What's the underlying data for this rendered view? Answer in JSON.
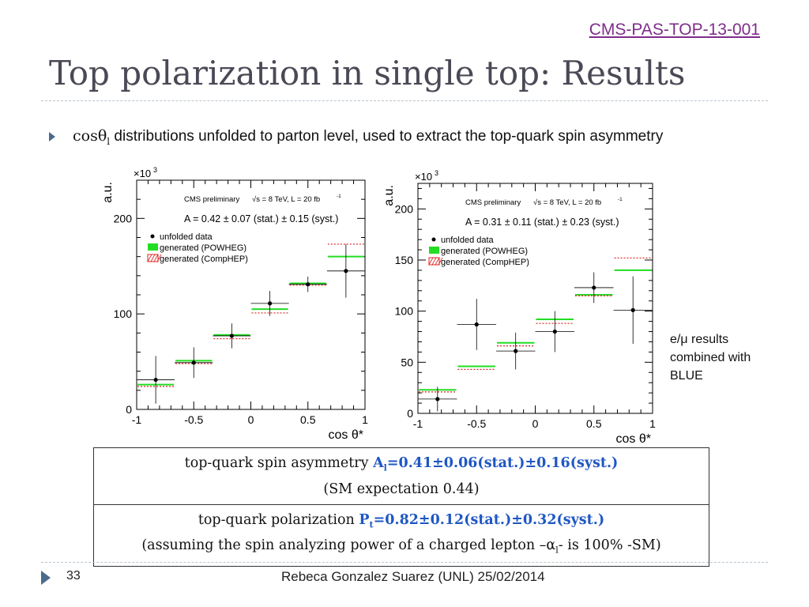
{
  "header": {
    "ref_link": "CMS-PAS-TOP-13-001",
    "title": "Top polarization in single top: Results"
  },
  "bullet": {
    "symbol": "cosθ",
    "subscript": "l",
    "text": " distributions unfolded to parton level, used to extract the top-quark spin asymmetry"
  },
  "side_note": "e/μ results combined with BLUE",
  "results": {
    "row1": {
      "label": "top-quark spin asymmetry ",
      "var": "A",
      "sub": "l",
      "value": "=0.41±0.06(stat.)±0.16(syst.)",
      "note": "(SM expectation 0.44)"
    },
    "row2": {
      "label": "top-quark polarization ",
      "var": "P",
      "sub": "t",
      "value": "=0.82±0.12(stat.)±0.32(syst.)",
      "note_pre": "(assuming the spin analyzing power of a charged lepton –α",
      "note_sub": "l",
      "note_post": "- is 100% -SM)"
    }
  },
  "footer": {
    "page": "33",
    "text": "Rebeca Gonzalez Suarez (UNL) 25/02/2014"
  },
  "colors": {
    "accent_link": "#7e2d8a",
    "highlight": "#1f57c4",
    "powheg": "#22dd22",
    "comphep": "#e02020"
  },
  "chart_data": [
    {
      "type": "scatter",
      "header": "CMS preliminary",
      "energy_label": "√s = 8 TeV, L = 20 fb",
      "lumi_exp": "-1",
      "result": "A = 0.42 ± 0.07 (stat.) ± 0.15 (syst.)",
      "ylabel": "a.u.",
      "y_multiplier": "×10",
      "y_multiplier_exp": "3",
      "xlabel": "cos θ*",
      "xlim": [
        -1,
        1
      ],
      "ylim": [
        0,
        240
      ],
      "xticks": [
        "-1",
        "-0.5",
        "0",
        "0.5",
        "1"
      ],
      "yticks": [
        "0",
        "100",
        "200"
      ],
      "ytick_values": [
        0,
        100,
        200
      ],
      "legend": [
        "unfolded data",
        "generated (POWHEG)",
        "generated (CompHEP)"
      ],
      "bins": [
        [
          -1,
          -0.667
        ],
        [
          -0.667,
          -0.333
        ],
        [
          -0.333,
          0
        ],
        [
          0,
          0.333
        ],
        [
          0.333,
          0.667
        ],
        [
          0.667,
          1
        ]
      ],
      "x": [
        -0.833,
        -0.5,
        -0.167,
        0.167,
        0.5,
        0.833
      ],
      "series": [
        {
          "name": "unfolded data",
          "values": [
            31,
            49,
            77,
            111,
            131,
            145
          ],
          "errors": [
            25,
            16,
            13,
            13,
            8,
            28
          ]
        },
        {
          "name": "generated (POWHEG)",
          "values": [
            26,
            51,
            78,
            105,
            132,
            160
          ]
        },
        {
          "name": "generated (CompHEP)",
          "values": [
            24,
            48,
            74,
            101,
            130,
            173
          ]
        }
      ]
    },
    {
      "type": "scatter",
      "header": "CMS preliminary",
      "energy_label": "√s = 8 TeV, L = 20 fb",
      "lumi_exp": "-1",
      "result": "A = 0.31 ± 0.11 (stat.) ± 0.23 (syst.)",
      "ylabel": "a.u.",
      "y_multiplier": "×10",
      "y_multiplier_exp": "3",
      "xlabel": "cos θ*",
      "xlim": [
        -1,
        1
      ],
      "ylim": [
        0,
        225
      ],
      "xticks": [
        "-1",
        "-0.5",
        "0",
        "0.5",
        "1"
      ],
      "yticks": [
        "0",
        "50",
        "100",
        "150",
        "200"
      ],
      "ytick_values": [
        0,
        50,
        100,
        150,
        200
      ],
      "legend": [
        "unfolded data",
        "generated (POWHEG)",
        "generated (CompHEP)"
      ],
      "bins": [
        [
          -1,
          -0.667
        ],
        [
          -0.667,
          -0.333
        ],
        [
          -0.333,
          0
        ],
        [
          0,
          0.333
        ],
        [
          0.333,
          0.667
        ],
        [
          0.667,
          1
        ]
      ],
      "x": [
        -0.833,
        -0.5,
        -0.167,
        0.167,
        0.5,
        0.833
      ],
      "series": [
        {
          "name": "unfolded data",
          "values": [
            14,
            87,
            61,
            80,
            123,
            101
          ],
          "errors": [
            12,
            25,
            18,
            20,
            15,
            33
          ]
        },
        {
          "name": "generated (POWHEG)",
          "values": [
            23,
            46,
            69,
            92,
            116,
            140
          ]
        },
        {
          "name": "generated (CompHEP)",
          "values": [
            21,
            43,
            66,
            88,
            115,
            152
          ]
        }
      ]
    }
  ]
}
